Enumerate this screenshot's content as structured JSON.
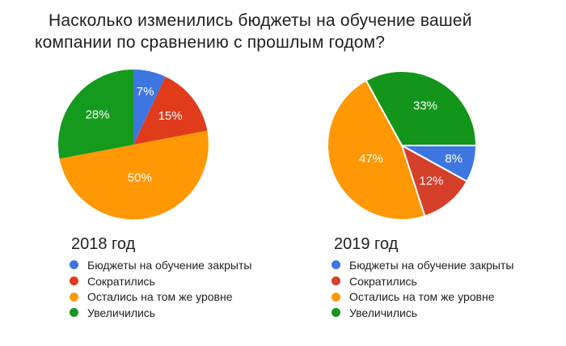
{
  "header": {
    "line1": "Насколько изменились бюджеты на обучение вашей",
    "line2": "компании по сравнению с прошлым годом?"
  },
  "chart_data": [
    {
      "type": "pie",
      "title": "2018 год",
      "categories": [
        "Бюджеты на обучение закрыты",
        "Сократились",
        "Остались на том же уровне",
        "Увеличились"
      ],
      "values": [
        7,
        15,
        50,
        28
      ],
      "labels": [
        "7%",
        "15%",
        "50%",
        "28%"
      ],
      "colors": [
        "#3D76E0",
        "#E03C1C",
        "#FF9804",
        "#149B1E"
      ],
      "start_angle_deg": 0,
      "direction": "clockwise",
      "separators": false,
      "label_color": "#ffffff",
      "legend_position": "bottom-left"
    },
    {
      "type": "pie",
      "title": "2019 год",
      "categories": [
        "Бюджеты на обучение закрыты",
        "Сократились",
        "Остались на том же уровне",
        "Увеличились"
      ],
      "values": [
        8,
        12,
        47,
        33
      ],
      "labels": [
        "8%",
        "12%",
        "47%",
        "33%"
      ],
      "colors": [
        "#3D76E0",
        "#D5402A",
        "#FF9804",
        "#12951A"
      ],
      "start_angle_deg": 90,
      "direction": "clockwise",
      "separators": true,
      "label_color": "#ffffff",
      "legend_position": "bottom-left"
    }
  ]
}
